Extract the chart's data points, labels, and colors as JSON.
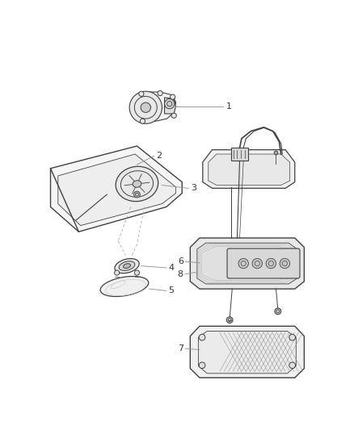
{
  "bg_color": "#ffffff",
  "line_color": "#404040",
  "label_color": "#999999",
  "text_color": "#333333",
  "fig_width": 4.38,
  "fig_height": 5.33,
  "dpi": 100
}
